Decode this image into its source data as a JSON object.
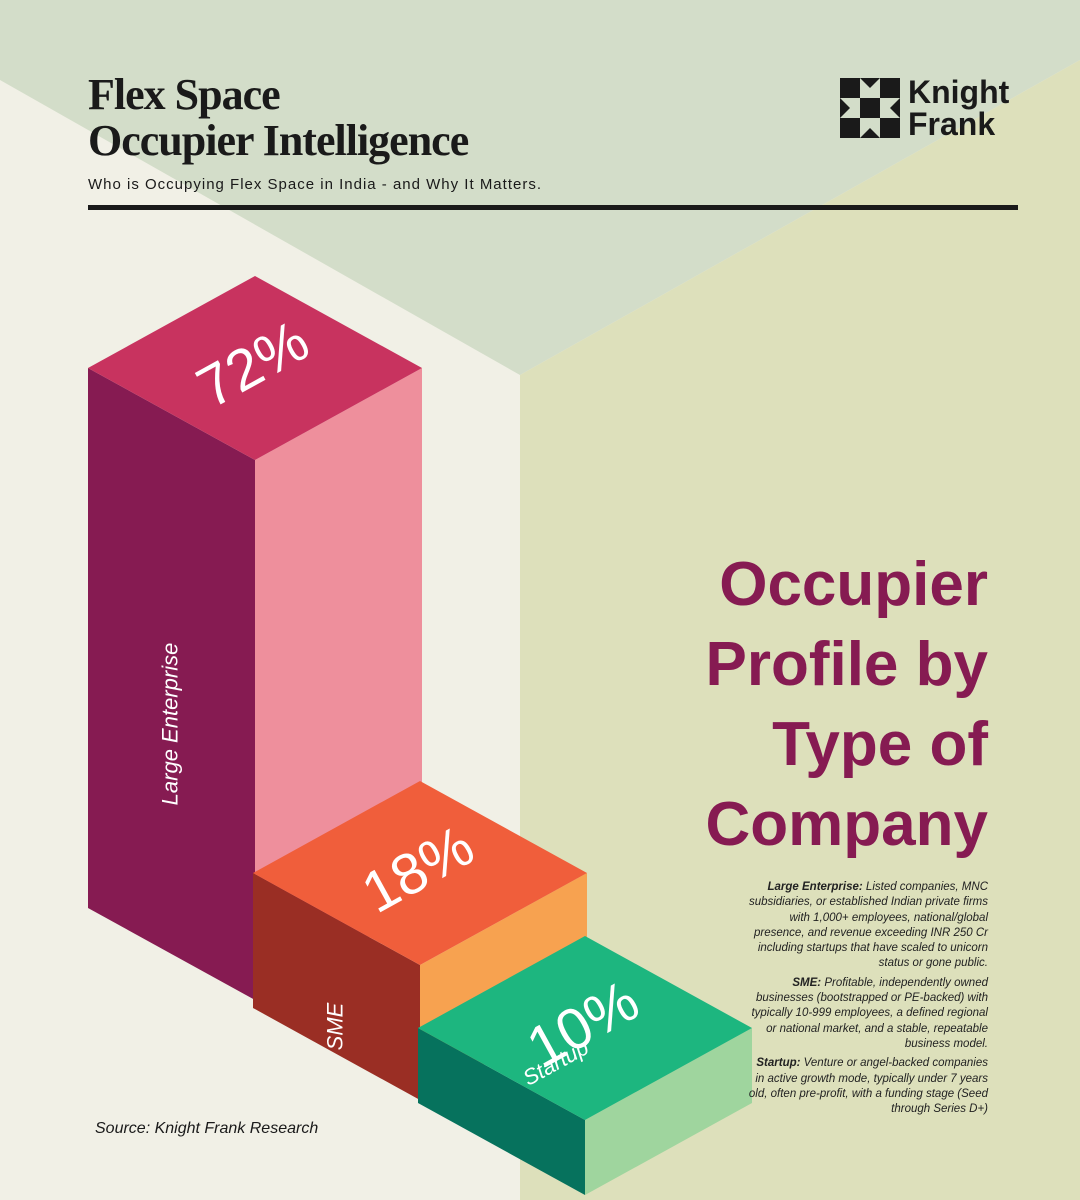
{
  "header": {
    "title_lines": [
      "Flex Space",
      "Occupier Intelligence"
    ],
    "subtitle": "Who is Occupying Flex Space in India - and Why It Matters."
  },
  "logo": [
    "Knight",
    "Frank"
  ],
  "chart_data": {
    "type": "isometric-bar",
    "title": [
      "Occupier",
      "Profile by",
      "Type of",
      "Company"
    ],
    "categories": [
      "Large Enterprise",
      "SME",
      "Startup"
    ],
    "values": [
      72,
      18,
      10
    ],
    "value_labels": [
      "72%",
      "18%",
      "10%"
    ],
    "colors": [
      {
        "top": "#c8335f",
        "left": "#861b52",
        "right": "#ee8f9c"
      },
      {
        "top": "#f05e3b",
        "left": "#9a2e24",
        "right": "#f7a250"
      },
      {
        "top": "#1db67f",
        "left": "#06725d",
        "right": "#9fd59e"
      }
    ]
  },
  "definitions": [
    {
      "term": "Large Enterprise:",
      "text": "Listed companies, MNC subsidiaries, or established Indian private firms with 1,000+ employees, national/global presence, and revenue exceeding INR 250 Cr including startups that have scaled to unicorn status or gone public."
    },
    {
      "term": "SME:",
      "text": "Profitable, independently owned businesses (bootstrapped or PE-backed) with typically 10-999 employees, a defined regional or national market, and a stable, repeatable business model."
    },
    {
      "term": "Startup:",
      "text": "Venture or angel-backed companies in active growth mode, typically under 7 years old, often pre-profit, with a funding stage (Seed through Series D+)"
    }
  ],
  "source": "Source: Knight Frank Research"
}
